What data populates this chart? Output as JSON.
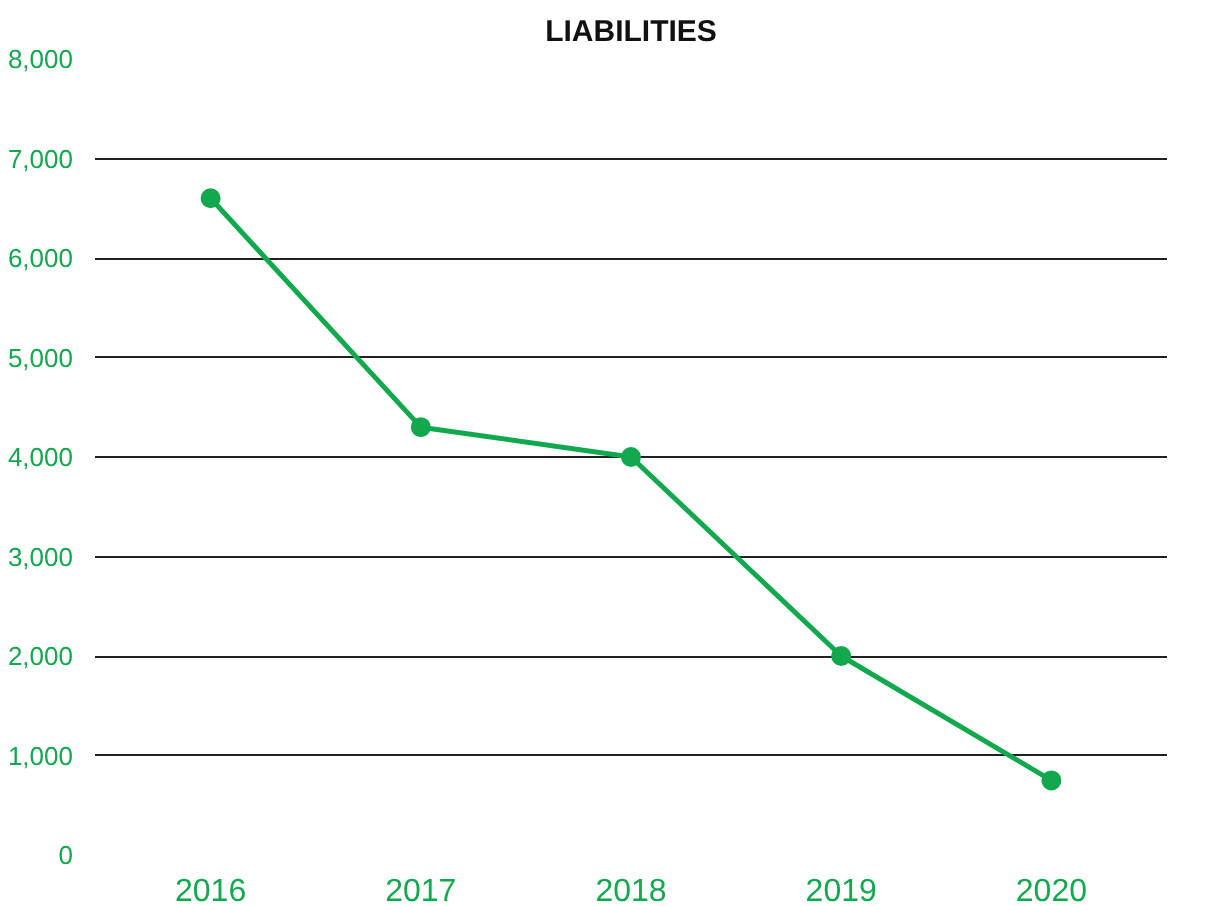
{
  "chart_data": {
    "type": "line",
    "title": "LIABILITIES",
    "categories": [
      "2016",
      "2017",
      "2018",
      "2019",
      "2020"
    ],
    "series": [
      {
        "color": "#12a84e",
        "values": [
          6600,
          4300,
          4000,
          2000,
          750
        ]
      }
    ],
    "ylim": [
      0,
      8000
    ],
    "yticks": [
      {
        "value": 0,
        "label": "0"
      },
      {
        "value": 1000,
        "label": "1,000"
      },
      {
        "value": 2000,
        "label": "2,000"
      },
      {
        "value": 3000,
        "label": "3,000"
      },
      {
        "value": 4000,
        "label": "4,000"
      },
      {
        "value": 5000,
        "label": "5,000"
      },
      {
        "value": 6000,
        "label": "6,000"
      },
      {
        "value": 7000,
        "label": "7,000"
      },
      {
        "value": 8000,
        "label": "8,000"
      }
    ],
    "grid": "y",
    "marker": "circle",
    "line_style": "solid"
  }
}
